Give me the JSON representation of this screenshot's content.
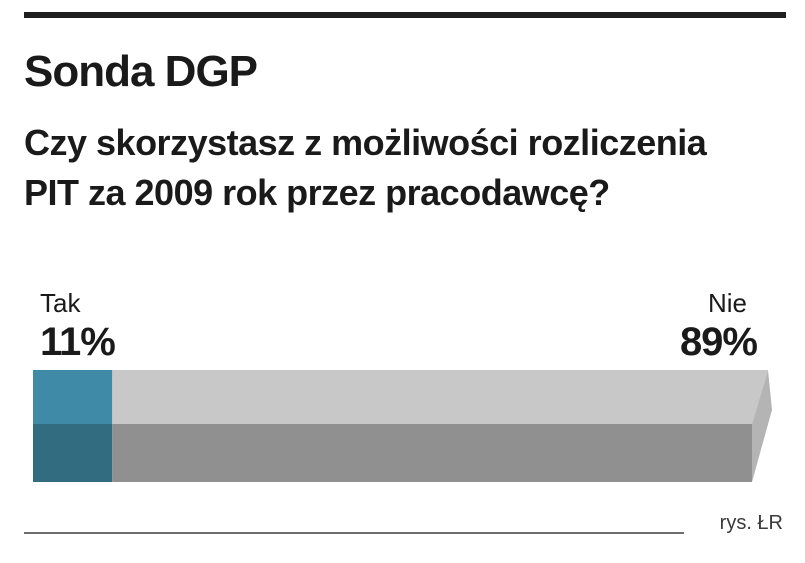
{
  "chart_data": {
    "type": "bar",
    "title": "Sonda DGP",
    "subtitle": "Czy skorzystasz z możliwości rozliczenia PIT za 2009 rok przez pracodawcę?",
    "categories": [
      "Tak",
      "Nie"
    ],
    "values": [
      11,
      89
    ],
    "value_labels": [
      "11%",
      "89%"
    ],
    "unit": "%",
    "stacked": true,
    "orientation": "horizontal",
    "colors": {
      "Tak": "#3f8aa6",
      "Nie": "#c8c8c8"
    }
  },
  "credit": "rys. ŁR"
}
